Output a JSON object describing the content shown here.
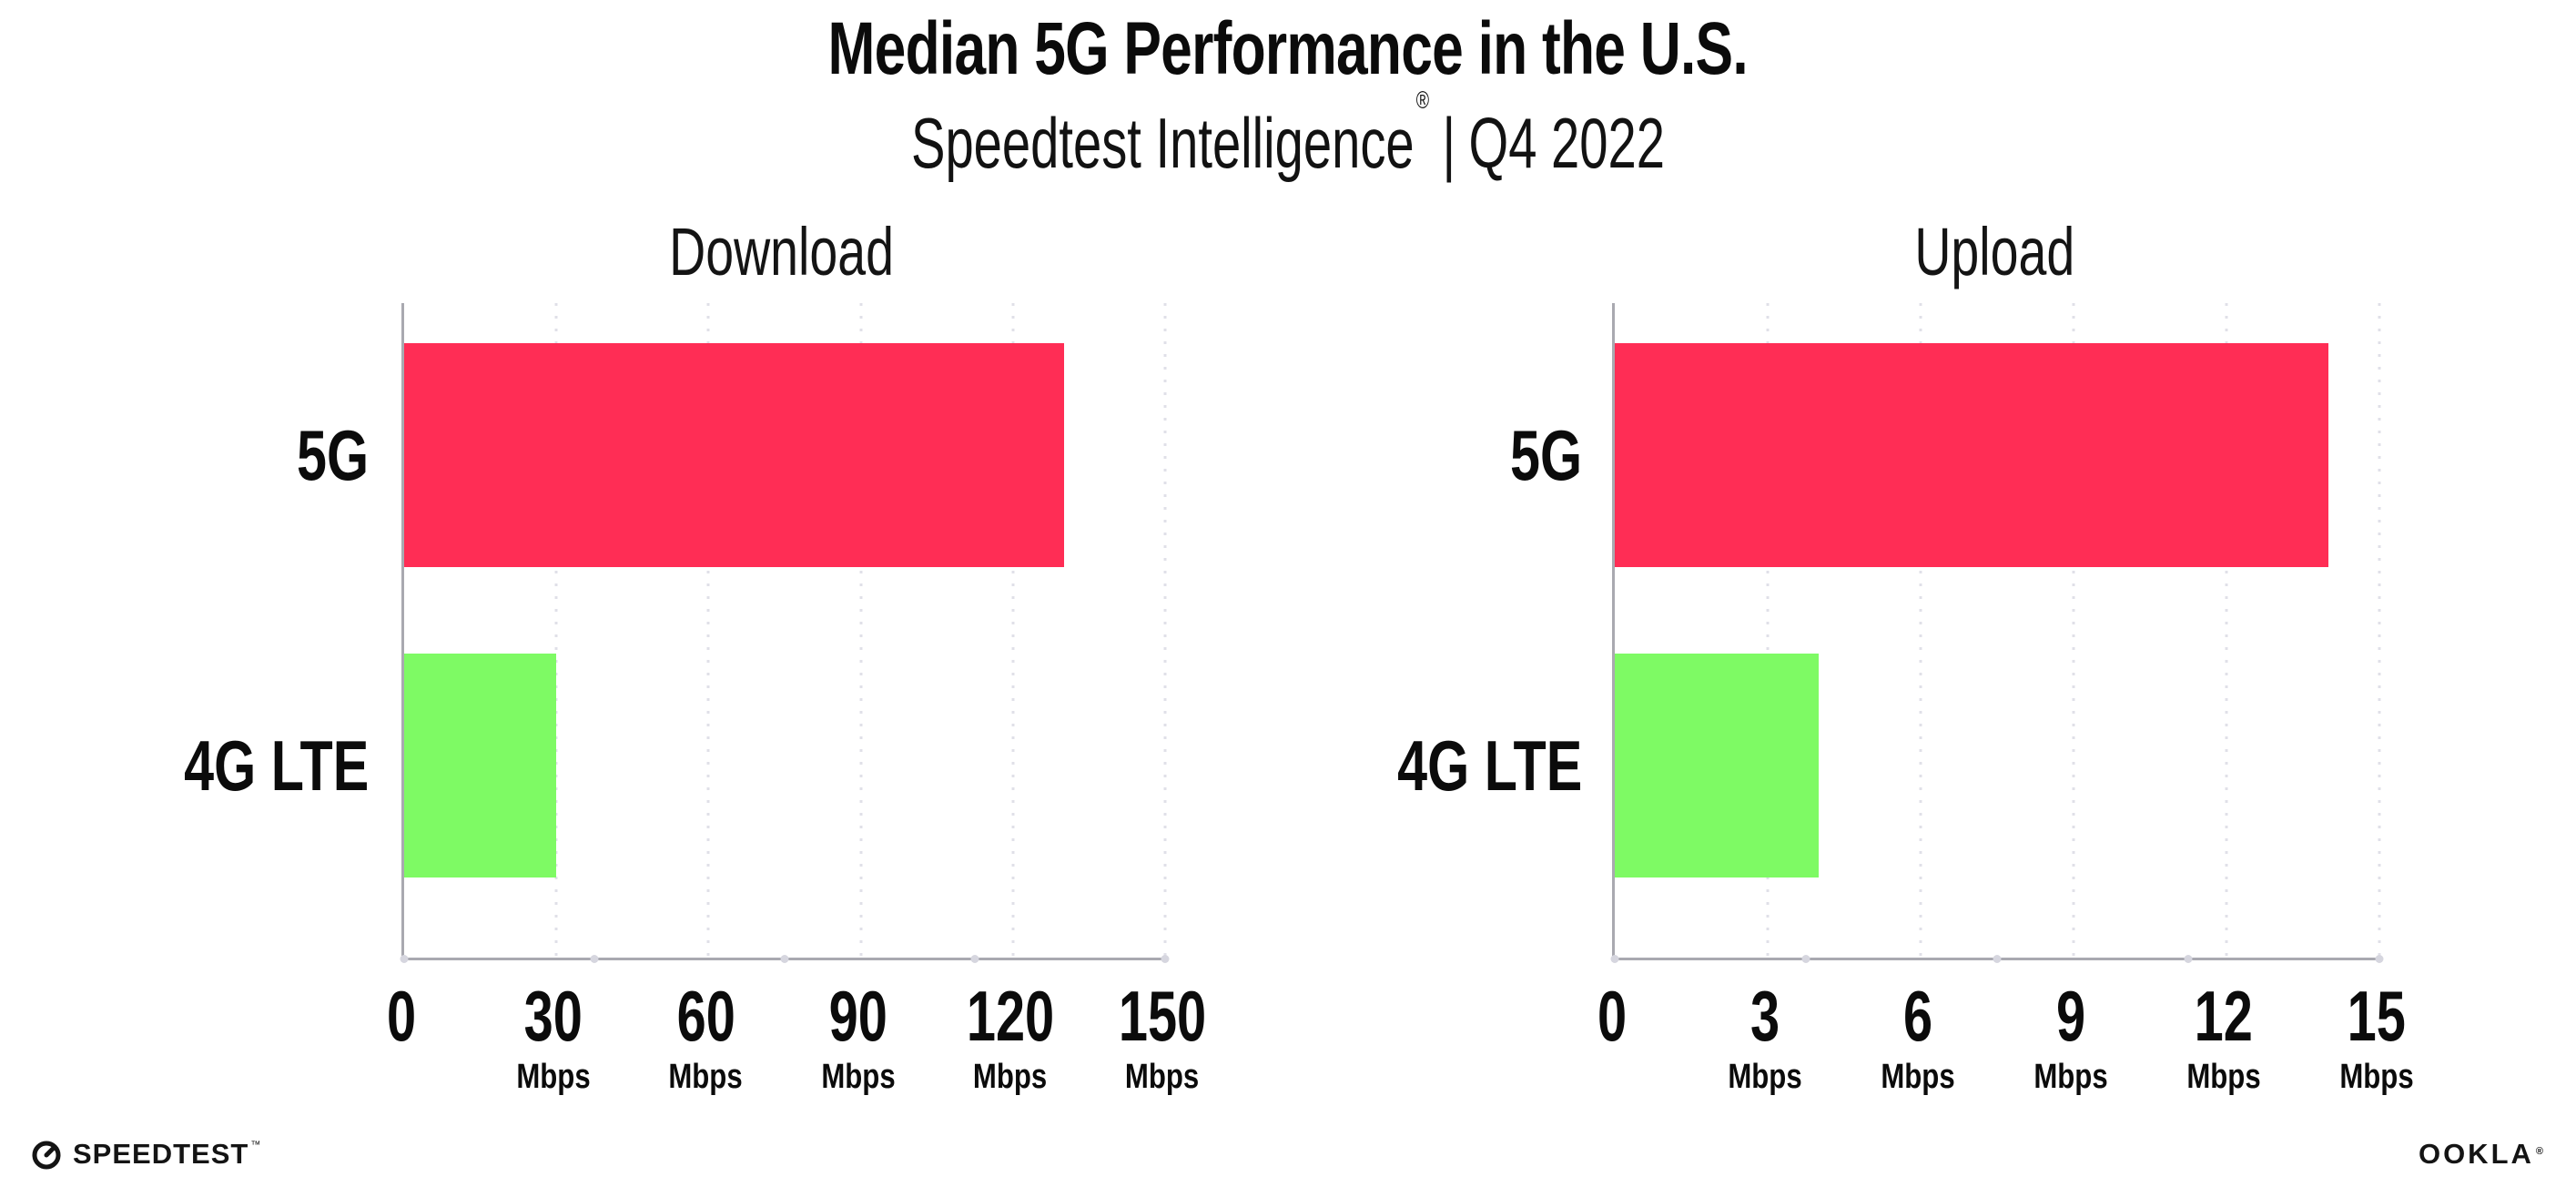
{
  "header": {
    "title": "Median 5G Performance in the U.S.",
    "subtitle_product": "Speedtest Intelligence",
    "subtitle_registered": "®",
    "subtitle_separator": "|",
    "subtitle_period": "Q4 2022"
  },
  "colors": {
    "bar_5g": "#FF2D55",
    "bar_4g_lte": "#7EFA64",
    "axis": "#a9a9b0",
    "gridline": "#e0e0e8",
    "text": "#0b0b0b"
  },
  "chart_data": [
    {
      "type": "bar",
      "orientation": "horizontal",
      "title": "Download",
      "categories": [
        "5G",
        "4G LTE"
      ],
      "values": [
        130,
        30
      ],
      "unit": "Mbps",
      "xlim": [
        0,
        150
      ],
      "xticks": [
        0,
        30,
        60,
        90,
        120,
        150
      ],
      "grid": true,
      "bar_colors": [
        "#FF2D55",
        "#7EFA64"
      ]
    },
    {
      "type": "bar",
      "orientation": "horizontal",
      "title": "Upload",
      "categories": [
        "5G",
        "4G LTE"
      ],
      "values": [
        14,
        4
      ],
      "unit": "Mbps",
      "xlim": [
        0,
        15
      ],
      "xticks": [
        0,
        3,
        6,
        9,
        12,
        15
      ],
      "grid": true,
      "bar_colors": [
        "#FF2D55",
        "#7EFA64"
      ]
    }
  ],
  "footer": {
    "speedtest": "SPEEDTEST",
    "speedtest_mark": "™",
    "ookla": "OOKLA",
    "ookla_mark": "®"
  }
}
